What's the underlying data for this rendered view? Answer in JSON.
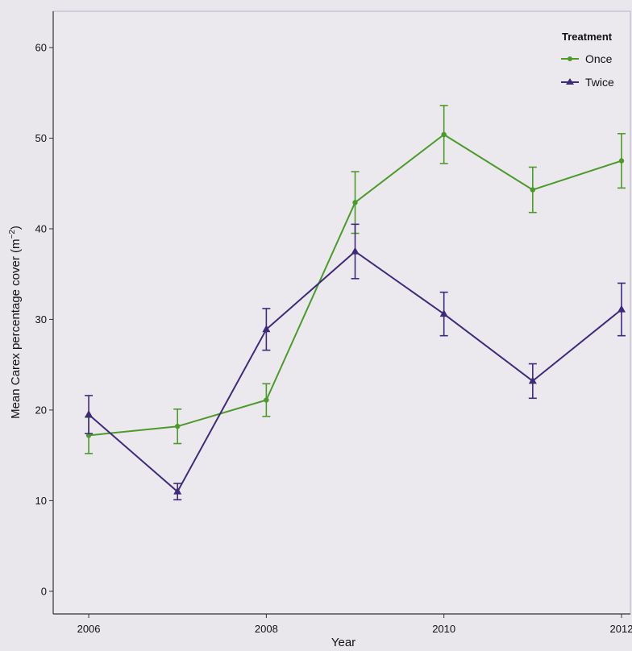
{
  "chart_data": {
    "type": "line",
    "xlabel": "Year",
    "ylabel": "Mean Carex percentage cover (m",
    "ylabel_sup": "−2",
    "ylabel_end": ")",
    "x_ticks": [
      2006,
      2008,
      2010,
      2012
    ],
    "y_ticks": [
      0,
      10,
      20,
      30,
      40,
      50,
      60
    ],
    "xlim": [
      2005.6,
      2012.1
    ],
    "ylim": [
      -2.5,
      64
    ],
    "grid": false,
    "legend_position": "top-right",
    "legend_title": "Treatment",
    "x": [
      2006,
      2007,
      2008,
      2009,
      2010,
      2011,
      2012
    ],
    "series": [
      {
        "name": "Once",
        "color": "#4c9a2a",
        "marker": "circle",
        "values": [
          17.2,
          18.2,
          21.1,
          42.9,
          50.4,
          44.3,
          47.5
        ],
        "errors": [
          2.0,
          1.9,
          1.8,
          3.4,
          3.2,
          2.5,
          3.0
        ]
      },
      {
        "name": "Twice",
        "color": "#3f2a7a",
        "marker": "triangle",
        "values": [
          19.5,
          11.0,
          28.9,
          37.5,
          30.6,
          23.2,
          31.1
        ],
        "errors": [
          2.1,
          0.9,
          2.3,
          3.0,
          2.4,
          1.9,
          2.9
        ]
      }
    ]
  }
}
